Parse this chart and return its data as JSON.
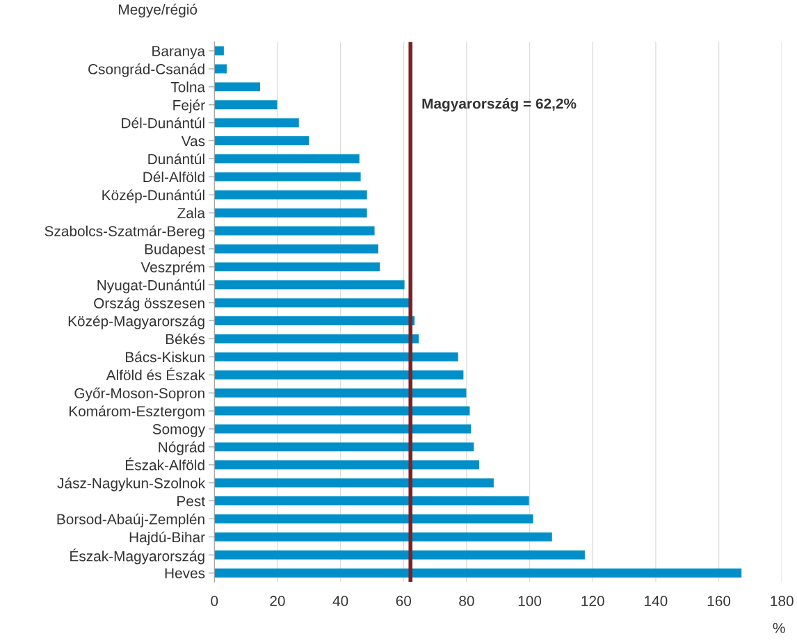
{
  "chart_data": {
    "type": "bar",
    "orientation": "horizontal",
    "ylabel": "Megye/régió",
    "xlabel": "%",
    "categories": [
      "Baranya",
      "Csongrád-Csanád",
      "Tolna",
      "Fejér",
      "Dél-Dunántúl",
      "Vas",
      "Dunántúl",
      "Dél-Alföld",
      "Közép-Dunántúl",
      "Zala",
      "Szabolcs-Szatmár-Bereg",
      "Budapest",
      "Veszprém",
      "Nyugat-Dunántúl",
      "Ország összesen",
      "Közép-Magyarország",
      "Békés",
      "Bács-Kiskun",
      "Alföld és Észak",
      "Győr-Moson-Sopron",
      "Komárom-Esztergom",
      "Somogy",
      "Nógrád",
      "Észak-Alföld",
      "Jász-Nagykun-Szolnok",
      "Pest",
      "Borsod-Abaúj-Zemplén",
      "Hajdú-Bihar",
      "Észak-Magyarország",
      "Heves"
    ],
    "values": [
      3.0,
      3.9,
      14.5,
      19.9,
      26.8,
      30.0,
      46.0,
      46.4,
      48.4,
      48.4,
      50.8,
      52.0,
      52.5,
      60.3,
      62.2,
      63.5,
      64.8,
      77.3,
      79.0,
      79.9,
      81.0,
      81.4,
      82.3,
      84.0,
      88.6,
      99.8,
      101.1,
      107.1,
      117.5,
      167.2
    ],
    "color": "#008fc9",
    "xlim": [
      0,
      180
    ],
    "xticks": [
      0,
      20,
      40,
      60,
      80,
      100,
      120,
      140,
      160,
      180
    ],
    "grid": "x",
    "ref_lines": [
      {
        "axis": "x",
        "value": 62.2,
        "label": "Magyarország = 62,2%",
        "color": "#7b2226"
      }
    ]
  }
}
